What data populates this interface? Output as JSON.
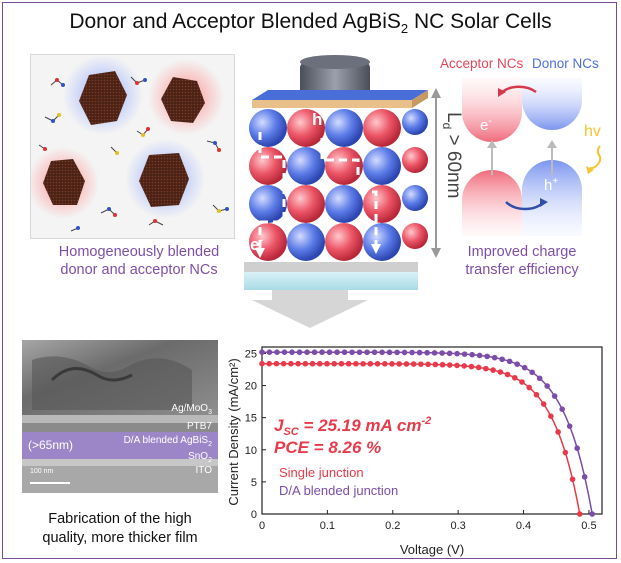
{
  "title": {
    "prefix": "Donor and Acceptor Blended AgBiS",
    "sub": "2",
    "suffix": " NC Solar Cells"
  },
  "nc_panel": {
    "caption_line1": "Homogeneously blended",
    "caption_line2": "donor and acceptor NCs"
  },
  "device": {
    "hole_label": "h",
    "hole_sup": "+",
    "electron_label": "e",
    "electron_sup": "-",
    "diffusion_prefix": "L",
    "diffusion_sub": "d",
    "diffusion_suffix": " > 60nm"
  },
  "band": {
    "acceptor_label": "Acceptor NCs",
    "donor_label": "Donor NCs",
    "electron_label": "e",
    "electron_sup": "-",
    "hole_label": "h",
    "hole_sup": "+",
    "photon_label": "hv",
    "caption_line1": "Improved charge",
    "caption_line2": "transfer efficiency"
  },
  "tem": {
    "layers": {
      "ag": "Ag/MoO",
      "ag_sub": "3",
      "ptb7": "PTB7",
      "blend": "D/A blended AgBiS",
      "blend_sub": "2",
      "sno": "SnO",
      "sno_sub": "2",
      "ito": "ITO"
    },
    "thickness": "(>65nm)",
    "scale": "100 nm",
    "caption_line1": "Fabrication of the high",
    "caption_line2": "quality, more thicker film"
  },
  "colors": {
    "acceptor": "#e5465a",
    "donor": "#4f6fe0",
    "purple": "#7f4fa8",
    "single_junction": "#e83a4a",
    "blended_junction": "#7b4ca8"
  },
  "chart_data": {
    "type": "line",
    "xlabel": "Voltage (V)",
    "ylabel": "Current Density (mA/cm²)",
    "xlim": [
      0,
      0.52
    ],
    "ylim": [
      0,
      26
    ],
    "x_ticks": [
      "0",
      "0.1",
      "0.2",
      "0.3",
      "0.4",
      "0.5"
    ],
    "y_ticks": [
      "0",
      "5",
      "10",
      "15",
      "20",
      "25"
    ],
    "annotation_jsc_prefix": "J",
    "annotation_jsc_sub": "SC",
    "annotation_jsc_value": " = 25.19 mA cm",
    "annotation_jsc_sup": "-2",
    "annotation_pce": "PCE = 8.26 %",
    "series": [
      {
        "name": "Single junction",
        "jsc": 23.4,
        "voc": 0.486,
        "ideality": 0.042
      },
      {
        "name": "D/A blended junction",
        "jsc": 25.19,
        "voc": 0.505,
        "ideality": 0.044
      }
    ]
  }
}
